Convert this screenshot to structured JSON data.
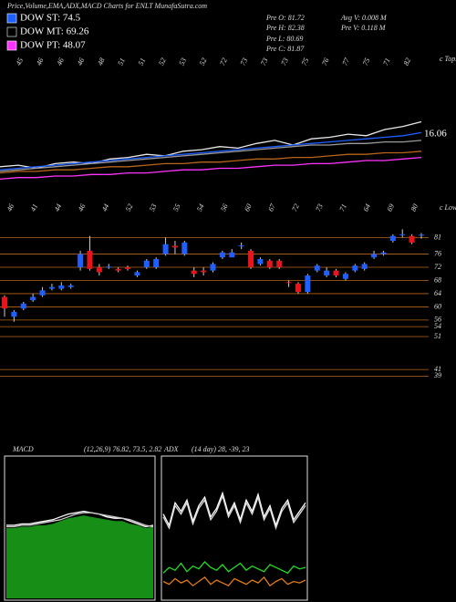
{
  "title": "Price,Volume,EMA,ADX,MACD Charts for ENLT MunafaSutra.com",
  "legend": [
    {
      "label": "DOW ST: 74.5",
      "color": "#1f5fff"
    },
    {
      "label": "DOW MT: 69.26",
      "color": "#000000"
    },
    {
      "label": "DOW PT: 48.07",
      "color": "#ff33ff"
    }
  ],
  "info": [
    "Pre O: 81.72",
    "Pre H: 82.38",
    "Pre L: 80.69",
    "Pre C: 81.87",
    "Avg V: 0.008 M",
    "Pre V: 0.118 M"
  ],
  "chart_data": [
    {
      "type": "line",
      "label": "16.06",
      "ylim": [
        0,
        100
      ],
      "series": [
        {
          "color": "#e8e8e8",
          "values": [
            16,
            17,
            15,
            18,
            19,
            18,
            21,
            22,
            24,
            23,
            26,
            27,
            29,
            28,
            31,
            33,
            30,
            34,
            35,
            37,
            36,
            40,
            42,
            45
          ]
        },
        {
          "color": "#1f5fff",
          "values": [
            14,
            15,
            16,
            17,
            18,
            19,
            20,
            21,
            22,
            23,
            24,
            25,
            26,
            27,
            28,
            29,
            30,
            31,
            32,
            33,
            34,
            35,
            36,
            38
          ]
        },
        {
          "color": "#9a9a9a",
          "values": [
            13,
            14,
            15,
            16,
            17,
            18,
            19,
            20,
            21,
            22,
            23,
            24,
            25,
            26,
            27,
            28,
            29,
            30,
            30,
            31,
            31,
            32,
            32,
            33
          ]
        },
        {
          "color": "#b8651a",
          "values": [
            12,
            13,
            13,
            14,
            14,
            15,
            16,
            16,
            17,
            18,
            18,
            19,
            19,
            20,
            21,
            21,
            22,
            22,
            23,
            24,
            24,
            25,
            25,
            26
          ]
        },
        {
          "color": "#ff33ff",
          "values": [
            8,
            9,
            9,
            10,
            10,
            11,
            11,
            12,
            12,
            13,
            14,
            14,
            15,
            15,
            16,
            17,
            17,
            18,
            18,
            19,
            20,
            20,
            21,
            22
          ]
        }
      ]
    },
    {
      "type": "candlestick",
      "ylim": [
        38,
        85
      ],
      "yticks": [
        81,
        76,
        72,
        68,
        64,
        60,
        56,
        54,
        51,
        41,
        39
      ],
      "top_caption": "c Tops",
      "low_caption": "c Lows",
      "top_labels": [
        "45",
        "46",
        "46",
        "46",
        "48",
        "51",
        "51",
        "52",
        "53",
        "52",
        "72",
        "73",
        "73",
        "73",
        "75",
        "76",
        "77",
        "75",
        "71",
        "82"
      ],
      "low_labels": [
        "46",
        "41",
        "44",
        "46",
        "44",
        "52",
        "53",
        "55",
        "54",
        "56",
        "60",
        "67",
        "72",
        "73",
        "71",
        "64",
        "69",
        "80"
      ],
      "up_color": "#1f5fff",
      "down_color": "#e8141c",
      "open": [
        63,
        57,
        59.5,
        62,
        63.5,
        65.5,
        65.5,
        66,
        72,
        77,
        72,
        72,
        71.5,
        72,
        69.5,
        72,
        72,
        76,
        78.5,
        76,
        71,
        71,
        71,
        75,
        75,
        78.5,
        77,
        73,
        74,
        74,
        67.5,
        67,
        64.5,
        71,
        69.5,
        71,
        68.5,
        71,
        71.5,
        75,
        76,
        80,
        82,
        81.5,
        81.72
      ],
      "high": [
        63.5,
        59,
        61.5,
        64,
        66,
        67,
        67.5,
        67,
        77,
        81.5,
        73,
        73,
        72,
        72.5,
        71,
        74.5,
        75,
        81,
        80,
        80,
        72,
        72,
        73.5,
        77,
        77.5,
        79.5,
        77.5,
        75,
        74.5,
        74.5,
        68,
        67.5,
        70,
        73,
        72,
        71.5,
        70.5,
        73,
        73.5,
        77,
        77,
        82,
        83.5,
        82,
        82.38
      ],
      "low": [
        57,
        55.5,
        59,
        61.5,
        63,
        65,
        65,
        65.5,
        71,
        71,
        69.5,
        71.5,
        70.5,
        71,
        69,
        71.5,
        71.5,
        75.5,
        76,
        75.5,
        69,
        69.5,
        70.5,
        74.5,
        75,
        77.5,
        71.5,
        72.5,
        71.5,
        71.5,
        66,
        64,
        64,
        70.5,
        69,
        69,
        68,
        70.5,
        71,
        74.5,
        75.5,
        79.5,
        81,
        79,
        80.69
      ],
      "close": [
        59.5,
        58.5,
        61,
        63,
        65,
        66,
        66.5,
        66.5,
        76,
        71.5,
        70.5,
        72.2,
        71,
        71.5,
        70.5,
        74,
        74.5,
        79,
        78,
        79.5,
        70,
        70.5,
        73,
        76.5,
        76.5,
        78.6,
        72,
        74.5,
        72,
        72,
        67.3,
        64.5,
        69.5,
        72.5,
        71,
        69.5,
        70,
        72.5,
        73,
        76,
        76.5,
        81.5,
        82,
        79.5,
        81.87
      ]
    },
    {
      "type": "area",
      "title": "MACD",
      "subtitle": "(12,26,9) 76.82, 73.5, 2.82",
      "ylim": [
        0,
        100
      ],
      "series": [
        {
          "color": "#1fbf1f",
          "values": [
            50,
            50,
            51,
            51,
            52,
            52,
            53,
            55,
            57,
            58,
            59,
            58,
            57,
            56,
            55,
            55,
            53,
            52,
            50,
            51
          ]
        },
        {
          "color": "#ffffff",
          "values": [
            52,
            52,
            53,
            53,
            54,
            55,
            56,
            58,
            60,
            61,
            62,
            61,
            60,
            58,
            57,
            57,
            55,
            53,
            51,
            52
          ]
        },
        {
          "color": "#cccccc",
          "values": [
            51,
            51,
            52,
            52,
            53,
            54,
            55,
            56,
            58,
            60,
            61,
            61,
            60,
            59,
            58,
            57,
            56,
            54,
            52,
            51
          ]
        }
      ]
    },
    {
      "type": "line",
      "title": "ADX",
      "subtitle": "(14 day) 28, -39, 23",
      "ylim": [
        0,
        100
      ],
      "series": [
        {
          "color": "#ffffff",
          "values": [
            60,
            52,
            68,
            62,
            70,
            55,
            66,
            72,
            58,
            64,
            75,
            60,
            68,
            56,
            70,
            62,
            74,
            58,
            66,
            52,
            64,
            70,
            56,
            62,
            68
          ]
        },
        {
          "color": "#dddddd",
          "values": [
            58,
            50,
            66,
            60,
            68,
            53,
            64,
            70,
            56,
            62,
            73,
            58,
            66,
            54,
            68,
            60,
            72,
            56,
            64,
            50,
            62,
            68,
            54,
            60,
            66
          ]
        },
        {
          "color": "#22dd22",
          "values": [
            18,
            22,
            20,
            25,
            19,
            23,
            21,
            26,
            22,
            20,
            24,
            19,
            22,
            25,
            20,
            23,
            21,
            19,
            24,
            22,
            20,
            18,
            23,
            21,
            22
          ]
        },
        {
          "color": "#e07a1a",
          "values": [
            12,
            10,
            14,
            11,
            13,
            9,
            12,
            15,
            10,
            13,
            11,
            9,
            14,
            12,
            10,
            13,
            11,
            15,
            9,
            12,
            14,
            10,
            12,
            11,
            13
          ]
        }
      ]
    }
  ]
}
